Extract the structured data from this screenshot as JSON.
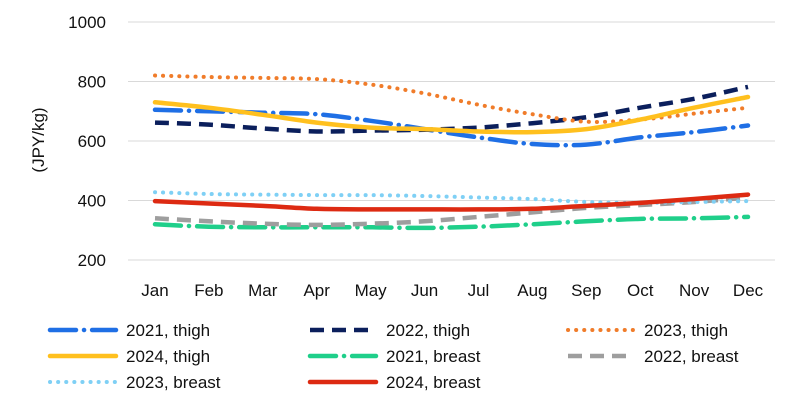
{
  "chart_data": {
    "type": "line",
    "title": "",
    "xlabel": "",
    "ylabel": "(JPY/kg)",
    "ylim": [
      200,
      1000
    ],
    "yticks": [
      200,
      400,
      600,
      800,
      1000
    ],
    "ytick_labels": [
      "200",
      "400",
      "600",
      "800",
      "1000"
    ],
    "grid": "horizontal",
    "legend_position": "bottom",
    "categories": [
      "Jan",
      "Feb",
      "Mar",
      "Apr",
      "May",
      "Jun",
      "Jul",
      "Aug",
      "Sep",
      "Oct",
      "Nov",
      "Dec"
    ],
    "series": [
      {
        "name": "2021, thigh",
        "color": "#1f6fe5",
        "style": "long-dash-dot",
        "values": [
          705,
          700,
          695,
          690,
          668,
          640,
          612,
          590,
          588,
          612,
          630,
          652
        ]
      },
      {
        "name": "2022, thigh",
        "color": "#0b1f5c",
        "style": "dash",
        "values": [
          662,
          655,
          642,
          632,
          635,
          638,
          645,
          660,
          680,
          712,
          742,
          782
        ]
      },
      {
        "name": "2023, thigh",
        "color": "#f07c2a",
        "style": "dot",
        "values": [
          820,
          815,
          812,
          808,
          790,
          760,
          722,
          690,
          665,
          672,
          692,
          712
        ]
      },
      {
        "name": "2024, thigh",
        "color": "#ffc01e",
        "style": "solid",
        "values": [
          730,
          712,
          688,
          662,
          645,
          640,
          632,
          630,
          640,
          672,
          712,
          748
        ]
      },
      {
        "name": "2021, breast",
        "color": "#1fcf8a",
        "style": "long-dash-dot",
        "values": [
          320,
          312,
          310,
          310,
          310,
          308,
          312,
          320,
          330,
          338,
          340,
          345
        ]
      },
      {
        "name": "2022, breast",
        "color": "#9e9e9e",
        "style": "dash",
        "values": [
          340,
          330,
          322,
          318,
          322,
          330,
          345,
          360,
          375,
          385,
          395,
          410
        ]
      },
      {
        "name": "2023, breast",
        "color": "#7fd0f5",
        "style": "dot",
        "values": [
          428,
          422,
          420,
          418,
          418,
          415,
          410,
          405,
          395,
          392,
          395,
          398
        ]
      },
      {
        "name": "2024, breast",
        "color": "#dd2a12",
        "style": "solid",
        "values": [
          398,
          390,
          382,
          372,
          370,
          370,
          370,
          372,
          382,
          392,
          405,
          420
        ]
      }
    ]
  }
}
